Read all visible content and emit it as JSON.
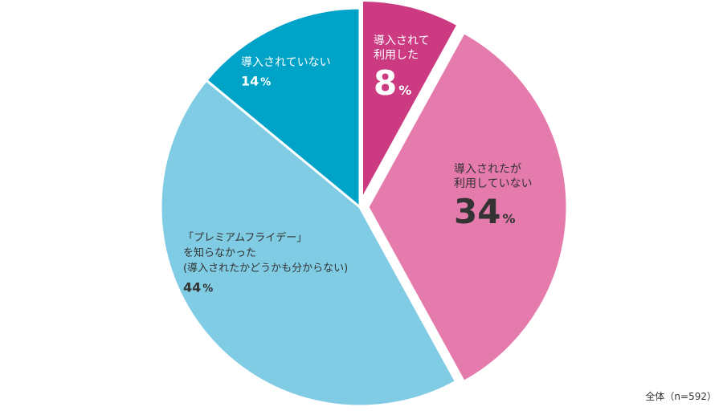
{
  "chart_data": {
    "type": "pie",
    "categories": [
      "導入されて利用した",
      "導入されたが利用していない",
      "「プレミアムフライデー」を知らなかった(導入されたかどうかも分からない)",
      "導入されていない"
    ],
    "values": [
      8,
      34,
      44,
      14
    ],
    "unit": "%",
    "colors": [
      "#cc3a82",
      "#e57aad",
      "#80cce4",
      "#00a3c8"
    ],
    "label_lines": [
      [
        "導入されて",
        "利用した"
      ],
      [
        "導入されたが",
        "利用していない"
      ],
      [
        "「プレミアムフライデー」",
        "を知らなかった",
        "(導入されたかどうかも分からない)"
      ],
      [
        "導入されていない"
      ]
    ],
    "value_labels": [
      "8",
      "34",
      "44",
      "14"
    ],
    "start_angle_deg": 0,
    "direction": "clockwise",
    "exploded": [
      "導入されて利用した",
      "導入されたが利用していない"
    ]
  },
  "footnote": "全体（n=592）"
}
